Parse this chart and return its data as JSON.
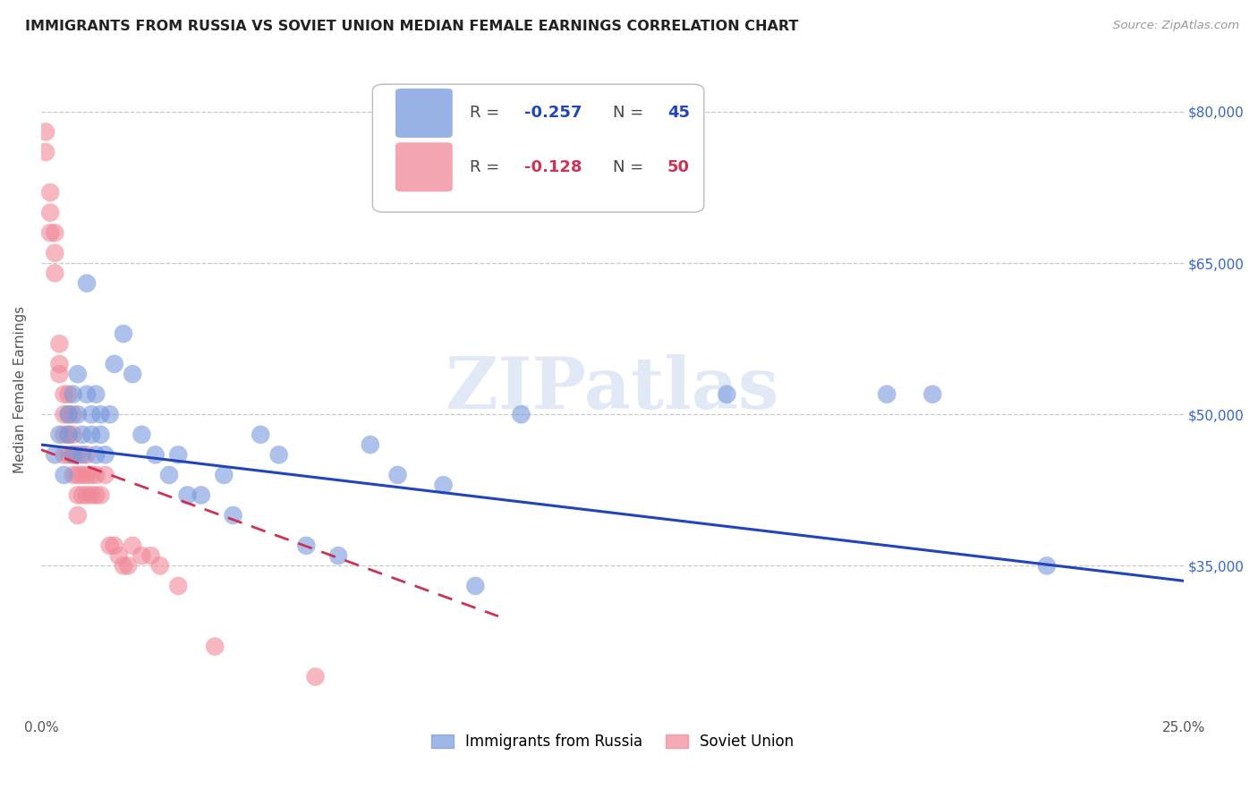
{
  "title": "IMMIGRANTS FROM RUSSIA VS SOVIET UNION MEDIAN FEMALE EARNINGS CORRELATION CHART",
  "source": "Source: ZipAtlas.com",
  "ylabel": "Median Female Earnings",
  "xlim": [
    0.0,
    0.25
  ],
  "ylim": [
    20000,
    85000
  ],
  "yticks": [
    35000,
    50000,
    65000,
    80000
  ],
  "ytick_labels": [
    "$35,000",
    "$50,000",
    "$65,000",
    "$80,000"
  ],
  "xticks": [
    0.0,
    0.05,
    0.1,
    0.15,
    0.2,
    0.25
  ],
  "xtick_labels": [
    "0.0%",
    "",
    "",
    "",
    "",
    "25.0%"
  ],
  "background_color": "#ffffff",
  "grid_color": "#c8c8c8",
  "russia_color": "#7799dd",
  "soviet_color": "#f08898",
  "russia_line_color": "#2244bb",
  "soviet_line_color": "#cc3355",
  "russia_scatter": {
    "x": [
      0.003,
      0.004,
      0.005,
      0.006,
      0.006,
      0.007,
      0.007,
      0.008,
      0.008,
      0.009,
      0.009,
      0.01,
      0.01,
      0.011,
      0.011,
      0.012,
      0.012,
      0.013,
      0.013,
      0.014,
      0.015,
      0.016,
      0.018,
      0.02,
      0.022,
      0.025,
      0.028,
      0.03,
      0.032,
      0.035,
      0.04,
      0.042,
      0.048,
      0.052,
      0.058,
      0.065,
      0.072,
      0.078,
      0.088,
      0.095,
      0.105,
      0.15,
      0.185,
      0.22,
      0.195
    ],
    "y": [
      46000,
      48000,
      44000,
      50000,
      48000,
      52000,
      46000,
      54000,
      50000,
      48000,
      46000,
      63000,
      52000,
      50000,
      48000,
      52000,
      46000,
      50000,
      48000,
      46000,
      50000,
      55000,
      58000,
      54000,
      48000,
      46000,
      44000,
      46000,
      42000,
      42000,
      44000,
      40000,
      48000,
      46000,
      37000,
      36000,
      47000,
      44000,
      43000,
      33000,
      50000,
      52000,
      52000,
      35000,
      52000
    ]
  },
  "soviet_scatter": {
    "x": [
      0.001,
      0.001,
      0.002,
      0.002,
      0.002,
      0.003,
      0.003,
      0.003,
      0.004,
      0.004,
      0.004,
      0.005,
      0.005,
      0.005,
      0.005,
      0.006,
      0.006,
      0.006,
      0.006,
      0.007,
      0.007,
      0.007,
      0.007,
      0.008,
      0.008,
      0.008,
      0.008,
      0.009,
      0.009,
      0.01,
      0.01,
      0.01,
      0.011,
      0.011,
      0.012,
      0.012,
      0.013,
      0.014,
      0.015,
      0.016,
      0.017,
      0.018,
      0.019,
      0.02,
      0.022,
      0.024,
      0.026,
      0.03,
      0.038,
      0.06
    ],
    "y": [
      78000,
      76000,
      72000,
      70000,
      68000,
      68000,
      66000,
      64000,
      57000,
      55000,
      54000,
      52000,
      50000,
      48000,
      46000,
      52000,
      50000,
      48000,
      46000,
      50000,
      48000,
      46000,
      44000,
      46000,
      44000,
      42000,
      40000,
      44000,
      42000,
      46000,
      44000,
      42000,
      44000,
      42000,
      44000,
      42000,
      42000,
      44000,
      37000,
      37000,
      36000,
      35000,
      35000,
      37000,
      36000,
      36000,
      35000,
      33000,
      27000,
      24000
    ]
  },
  "russia_line": {
    "x0": 0.0,
    "y0": 47000,
    "x1": 0.25,
    "y1": 33500
  },
  "soviet_line": {
    "x0": 0.0,
    "y0": 46500,
    "x1": 0.1,
    "y1": 30000
  },
  "title_fontsize": 11.5,
  "axis_label_fontsize": 11,
  "tick_fontsize": 11,
  "legend_fontsize": 13,
  "legend_label_russia": "Immigrants from Russia",
  "legend_label_soviet": "Soviet Union"
}
